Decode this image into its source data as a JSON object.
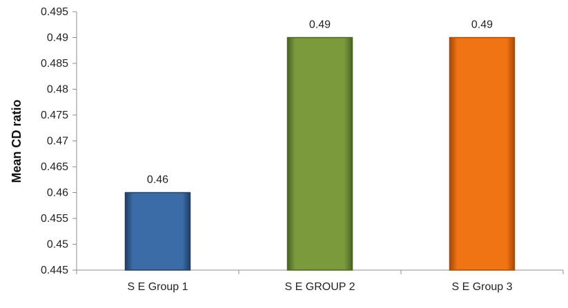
{
  "chart_data": {
    "type": "bar",
    "title": "",
    "xlabel": "",
    "ylabel": "Mean CD ratio",
    "categories": [
      "S E Group 1",
      "S E GROUP 2",
      "S E Group 3"
    ],
    "values": [
      0.46,
      0.49,
      0.49
    ],
    "data_labels": [
      "0.46",
      "0.49",
      "0.49"
    ],
    "ylim": [
      0.445,
      0.495
    ],
    "yticks": [
      "0.445",
      "0.45",
      "0.455",
      "0.46",
      "0.465",
      "0.47",
      "0.475",
      "0.48",
      "0.485",
      "0.49",
      "0.495"
    ],
    "bar_colors": [
      "#3b6ca8",
      "#7a9a3c",
      "#f07413"
    ],
    "bar_edge_colors": [
      "#1f3f66",
      "#4a6322",
      "#a84a06"
    ],
    "grid": false,
    "legend": "none"
  }
}
